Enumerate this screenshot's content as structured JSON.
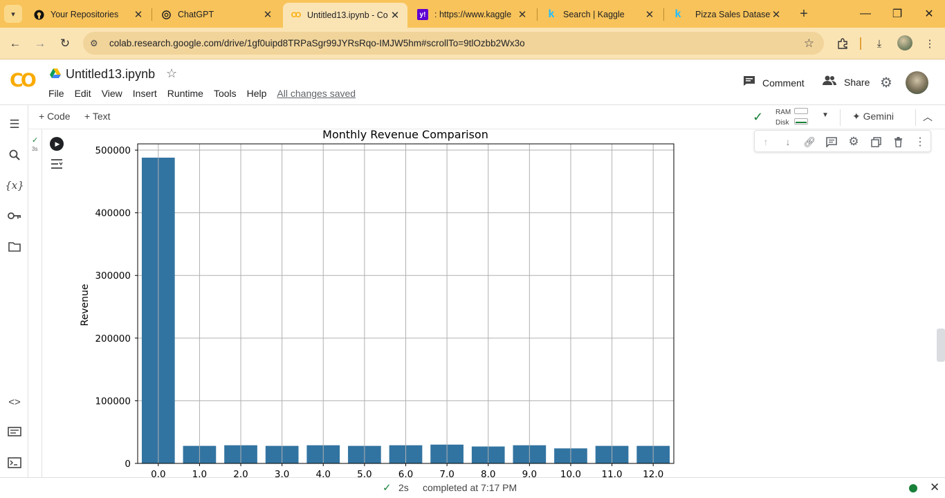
{
  "browser": {
    "tabs": [
      {
        "title": "Your Repositories",
        "icon": "github-icon"
      },
      {
        "title": "ChatGPT",
        "icon": "chatgpt-icon"
      },
      {
        "title": "Untitled13.ipynb - Co",
        "icon": "colab-icon",
        "active": true
      },
      {
        "title": ": https://www.kaggle",
        "icon": "yahoo-icon"
      },
      {
        "title": "Search | Kaggle",
        "icon": "kaggle-icon"
      },
      {
        "title": "Pizza Sales Dataset",
        "icon": "kaggle-icon"
      }
    ],
    "url": "colab.research.google.com/drive/1gf0uipd8TRPaSgr99JYRsRqo-IMJW5hm#scrollTo=9tlOzbb2Wx3o"
  },
  "colab": {
    "notebook_title": "Untitled13.ipynb",
    "menu": [
      "File",
      "Edit",
      "View",
      "Insert",
      "Runtime",
      "Tools",
      "Help"
    ],
    "saved_status": "All changes saved",
    "comment_label": "Comment",
    "share_label": "Share",
    "toolbar": {
      "code_label": "+ Code",
      "text_label": "+ Text",
      "ram_label": "RAM",
      "disk_label": "Disk",
      "gemini_label": "Gemini"
    },
    "cell": {
      "exec_time": "3s"
    },
    "status": {
      "duration": "2s",
      "message": "completed at 7:17 PM"
    }
  },
  "colors": {
    "bar": "#3274a1",
    "accent": "#f9ab00",
    "success": "#188038"
  },
  "chart_data": {
    "type": "bar",
    "title": "Monthly Revenue Comparison",
    "xlabel": "",
    "ylabel": "Revenue",
    "categories": [
      "0.0",
      "1.0",
      "2.0",
      "3.0",
      "4.0",
      "5.0",
      "6.0",
      "7.0",
      "8.0",
      "9.0",
      "10.0",
      "11.0",
      "12.0"
    ],
    "values": [
      488000,
      28000,
      29000,
      28000,
      29000,
      28000,
      29000,
      30000,
      27000,
      29000,
      24000,
      28000,
      28000
    ],
    "yticks": [
      0,
      100000,
      200000,
      300000,
      400000,
      500000
    ],
    "ylim": [
      0,
      510000
    ],
    "grid": true
  }
}
